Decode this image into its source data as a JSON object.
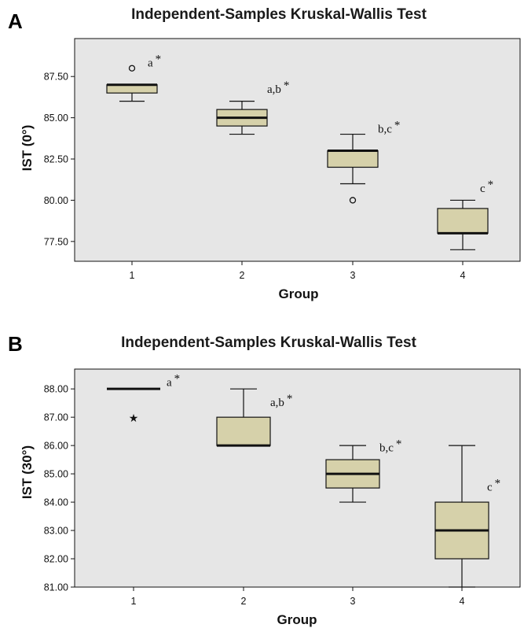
{
  "colors": {
    "plot_bg": "#e6e6e6",
    "box_fill": "#d6d1aa",
    "stroke": "#111111"
  },
  "chart_data": [
    {
      "panel": "A",
      "type": "boxplot",
      "title": "Independent-Samples Kruskal-Wallis Test",
      "xlabel": "Group",
      "ylabel": "IST (0°)",
      "categories": [
        "1",
        "2",
        "3",
        "4"
      ],
      "ylim": [
        76.3,
        89.8
      ],
      "yticks": [
        "87.50",
        "85.00",
        "82.50",
        "80.00",
        "77.50"
      ],
      "grid": false,
      "boxes": [
        {
          "q1": 86.5,
          "median": 87.0,
          "q3": 87.0,
          "whisker_low": 86.0,
          "whisker_high": 87.0,
          "outliers": [
            {
              "value": 88.0,
              "marker": "circle"
            }
          ],
          "label": "a",
          "label_y": 88.1
        },
        {
          "q1": 84.5,
          "median": 85.0,
          "q3": 85.5,
          "whisker_low": 84.0,
          "whisker_high": 86.0,
          "outliers": [],
          "label": "a,b",
          "label_y": 86.5
        },
        {
          "q1": 82.0,
          "median": 83.0,
          "q3": 83.0,
          "whisker_low": 81.0,
          "whisker_high": 84.0,
          "outliers": [
            {
              "value": 80.0,
              "marker": "circle"
            }
          ],
          "label": "b,c",
          "label_y": 84.1
        },
        {
          "q1": 78.0,
          "median": 78.0,
          "q3": 79.5,
          "whisker_low": 77.0,
          "whisker_high": 80.0,
          "outliers": [],
          "label": "c",
          "label_y": 80.5
        }
      ]
    },
    {
      "panel": "B",
      "type": "boxplot",
      "title": "Independent-Samples Kruskal-Wallis Test",
      "xlabel": "Group",
      "ylabel": "IST (30°)",
      "categories": [
        "1",
        "2",
        "3",
        "4"
      ],
      "ylim": [
        81.0,
        88.7
      ],
      "yticks": [
        "88.00",
        "87.00",
        "86.00",
        "85.00",
        "84.00",
        "83.00",
        "82.00",
        "81.00"
      ],
      "grid": false,
      "boxes": [
        {
          "q1": 88.0,
          "median": 88.0,
          "q3": 88.0,
          "whisker_low": 88.0,
          "whisker_high": 88.0,
          "outliers": [
            {
              "value": 87.0,
              "marker": "star"
            }
          ],
          "label": "a",
          "label_y": 88.1
        },
        {
          "q1": 86.0,
          "median": 86.0,
          "q3": 87.0,
          "whisker_low": 86.0,
          "whisker_high": 88.0,
          "outliers": [],
          "label": "a,b",
          "label_y": 87.4
        },
        {
          "q1": 84.5,
          "median": 85.0,
          "q3": 85.5,
          "whisker_low": 84.0,
          "whisker_high": 86.0,
          "outliers": [],
          "label": "b,c",
          "label_y": 85.8
        },
        {
          "q1": 82.0,
          "median": 83.0,
          "q3": 84.0,
          "whisker_low": 81.0,
          "whisker_high": 86.0,
          "outliers": [],
          "label": "c",
          "label_y": 84.4
        }
      ]
    }
  ]
}
